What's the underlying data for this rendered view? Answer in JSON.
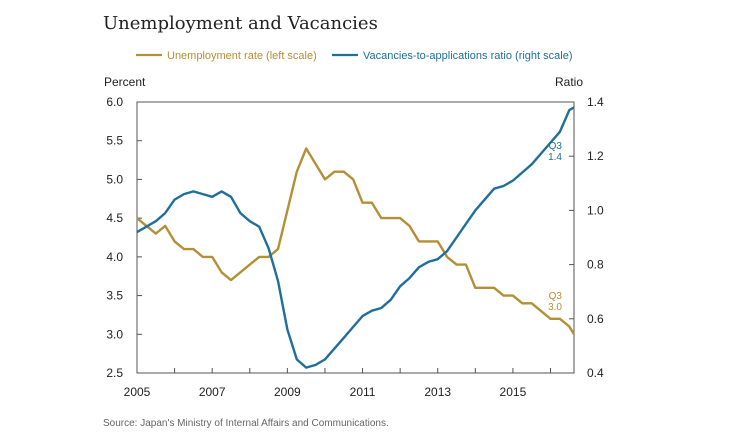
{
  "chart_data": {
    "type": "line",
    "title": "Unemployment and Vacancies",
    "left_axis": {
      "label": "Percent",
      "ylim": [
        2.5,
        6.0
      ],
      "ticks": [
        "6.0",
        "5.5",
        "5.0",
        "4.5",
        "4.0",
        "3.5",
        "3.0",
        "2.5"
      ]
    },
    "right_axis": {
      "label": "Ratio",
      "ylim": [
        0.4,
        1.4
      ],
      "ticks": [
        "1.4",
        "1.2",
        "1.0",
        "0.8",
        "0.6",
        "0.4"
      ]
    },
    "x_axis": {
      "xlim": [
        2005.0,
        2016.625
      ],
      "ticks": [
        "2005",
        "2007",
        "2009",
        "2011",
        "2013",
        "2015"
      ]
    },
    "grid": false,
    "legend_position": "top",
    "series": [
      {
        "name": "Unemployment rate (left scale)",
        "axis": "left",
        "color": "#b38f36",
        "points": [
          [
            2005.0,
            4.5
          ],
          [
            2005.25,
            4.4
          ],
          [
            2005.5,
            4.3
          ],
          [
            2005.75,
            4.4
          ],
          [
            2006.0,
            4.2
          ],
          [
            2006.25,
            4.1
          ],
          [
            2006.5,
            4.1
          ],
          [
            2006.75,
            4.0
          ],
          [
            2007.0,
            4.0
          ],
          [
            2007.25,
            3.8
          ],
          [
            2007.5,
            3.7
          ],
          [
            2007.75,
            3.8
          ],
          [
            2008.0,
            3.9
          ],
          [
            2008.25,
            4.0
          ],
          [
            2008.5,
            4.0
          ],
          [
            2008.75,
            4.1
          ],
          [
            2009.0,
            4.6
          ],
          [
            2009.25,
            5.1
          ],
          [
            2009.5,
            5.4
          ],
          [
            2009.75,
            5.2
          ],
          [
            2010.0,
            5.0
          ],
          [
            2010.25,
            5.1
          ],
          [
            2010.5,
            5.1
          ],
          [
            2010.75,
            5.0
          ],
          [
            2011.0,
            4.7
          ],
          [
            2011.25,
            4.7
          ],
          [
            2011.5,
            4.5
          ],
          [
            2011.75,
            4.5
          ],
          [
            2012.0,
            4.5
          ],
          [
            2012.25,
            4.4
          ],
          [
            2012.5,
            4.2
          ],
          [
            2012.75,
            4.2
          ],
          [
            2013.0,
            4.2
          ],
          [
            2013.25,
            4.0
          ],
          [
            2013.5,
            3.9
          ],
          [
            2013.75,
            3.9
          ],
          [
            2014.0,
            3.6
          ],
          [
            2014.25,
            3.6
          ],
          [
            2014.5,
            3.6
          ],
          [
            2014.75,
            3.5
          ],
          [
            2015.0,
            3.5
          ],
          [
            2015.25,
            3.4
          ],
          [
            2015.5,
            3.4
          ],
          [
            2015.75,
            3.3
          ],
          [
            2016.0,
            3.2
          ],
          [
            2016.25,
            3.2
          ],
          [
            2016.5,
            3.1
          ],
          [
            2016.625,
            3.0
          ]
        ],
        "end_label": [
          "Q3",
          "3.0"
        ]
      },
      {
        "name": "Vacancies-to-applications ratio (right scale)",
        "axis": "right",
        "color": "#1f6f9a",
        "points": [
          [
            2005.0,
            0.92
          ],
          [
            2005.25,
            0.94
          ],
          [
            2005.5,
            0.96
          ],
          [
            2005.75,
            0.99
          ],
          [
            2006.0,
            1.04
          ],
          [
            2006.25,
            1.06
          ],
          [
            2006.5,
            1.07
          ],
          [
            2006.75,
            1.06
          ],
          [
            2007.0,
            1.05
          ],
          [
            2007.25,
            1.07
          ],
          [
            2007.5,
            1.05
          ],
          [
            2007.75,
            0.99
          ],
          [
            2008.0,
            0.96
          ],
          [
            2008.25,
            0.94
          ],
          [
            2008.5,
            0.86
          ],
          [
            2008.75,
            0.74
          ],
          [
            2009.0,
            0.56
          ],
          [
            2009.25,
            0.45
          ],
          [
            2009.5,
            0.42
          ],
          [
            2009.75,
            0.43
          ],
          [
            2010.0,
            0.45
          ],
          [
            2010.25,
            0.49
          ],
          [
            2010.5,
            0.53
          ],
          [
            2010.75,
            0.57
          ],
          [
            2011.0,
            0.61
          ],
          [
            2011.25,
            0.63
          ],
          [
            2011.5,
            0.64
          ],
          [
            2011.75,
            0.67
          ],
          [
            2012.0,
            0.72
          ],
          [
            2012.25,
            0.75
          ],
          [
            2012.5,
            0.79
          ],
          [
            2012.75,
            0.81
          ],
          [
            2013.0,
            0.82
          ],
          [
            2013.25,
            0.85
          ],
          [
            2013.5,
            0.9
          ],
          [
            2013.75,
            0.95
          ],
          [
            2014.0,
            1.0
          ],
          [
            2014.25,
            1.04
          ],
          [
            2014.5,
            1.08
          ],
          [
            2014.75,
            1.09
          ],
          [
            2015.0,
            1.11
          ],
          [
            2015.25,
            1.14
          ],
          [
            2015.5,
            1.17
          ],
          [
            2015.75,
            1.21
          ],
          [
            2016.0,
            1.25
          ],
          [
            2016.25,
            1.29
          ],
          [
            2016.5,
            1.37
          ],
          [
            2016.625,
            1.38
          ]
        ],
        "end_label": [
          "Q3",
          "1.4"
        ]
      }
    ]
  },
  "source": "Source: Japan's Ministry of Internal Affairs and Communications."
}
